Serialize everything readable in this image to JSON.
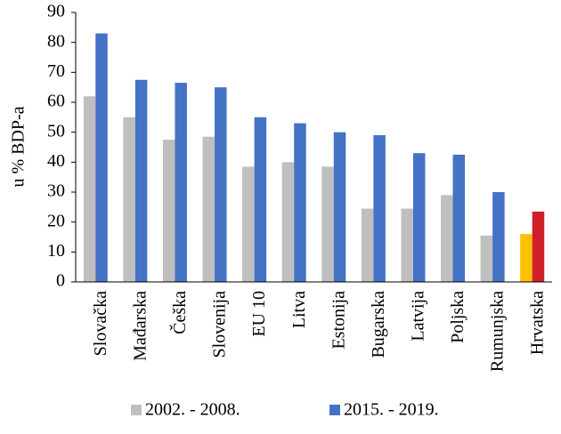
{
  "chart_data": {
    "type": "bar",
    "ylabel": "u % BDP-a",
    "categories": [
      "Slovačka",
      "Mađarska",
      "Češka",
      "Slovenija",
      "EU 10",
      "Litva",
      "Estonija",
      "Bugarska",
      "Latvija",
      "Poljska",
      "Rumunjska",
      "Hrvatska"
    ],
    "series": [
      {
        "name": "2002. - 2008.",
        "color": "#bfbfbf",
        "colors": [
          "#bfbfbf",
          "#bfbfbf",
          "#bfbfbf",
          "#bfbfbf",
          "#bfbfbf",
          "#bfbfbf",
          "#bfbfbf",
          "#bfbfbf",
          "#bfbfbf",
          "#bfbfbf",
          "#bfbfbf",
          "#ffc000"
        ],
        "values": [
          62,
          55,
          47.5,
          48.5,
          38.5,
          40,
          38.5,
          24.5,
          24.5,
          29,
          15.5,
          16
        ]
      },
      {
        "name": "2015. - 2019.",
        "color": "#4472c4",
        "colors": [
          "#4472c4",
          "#4472c4",
          "#4472c4",
          "#4472c4",
          "#4472c4",
          "#4472c4",
          "#4472c4",
          "#4472c4",
          "#4472c4",
          "#4472c4",
          "#4472c4",
          "#d0202a"
        ],
        "values": [
          83,
          67.5,
          66.5,
          65,
          55,
          53,
          50,
          49,
          43,
          42.5,
          30,
          23.5
        ]
      }
    ],
    "ylim": [
      0,
      90
    ],
    "yticks": [
      0,
      10,
      20,
      30,
      40,
      50,
      60,
      70,
      80,
      90
    ],
    "grid": false,
    "legend": "bottom"
  }
}
